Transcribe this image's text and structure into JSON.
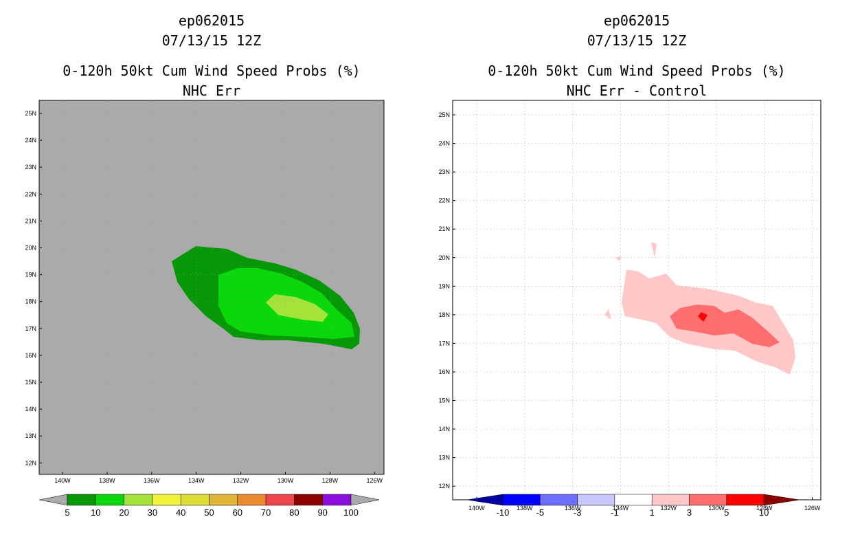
{
  "colors": {
    "background": "#aaaaaa",
    "shade_5": "#079807",
    "shade_10": "#0bd80b",
    "shade_20": "#a4e33a",
    "diff_pos_1": "#ffc8c8",
    "diff_pos_3": "#ff6e6e",
    "diff_pos_5": "#ff0000",
    "grid": "#999999"
  },
  "left_panel": {
    "title_line1": "ep062015",
    "title_line2": "07/13/15 12Z",
    "title_line3": "0-120h 50kt Cum Wind Speed Probs (%)",
    "title_line4": "NHC Err",
    "lat_labels": [
      "25N",
      "24N",
      "23N",
      "22N",
      "21N",
      "20N",
      "19N",
      "18N",
      "17N",
      "16N",
      "15N",
      "14N",
      "13N",
      "12N"
    ],
    "lon_labels": [
      "140W",
      "138W",
      "136W",
      "134W",
      "132W",
      "130W",
      "128W",
      "126W"
    ],
    "colorbar": {
      "labels": [
        "5",
        "10",
        "20",
        "30",
        "40",
        "50",
        "60",
        "70",
        "80",
        "90",
        "100"
      ],
      "colors": [
        "#079807",
        "#0bd80b",
        "#a4e33a",
        "#f2f23a",
        "#dddd37",
        "#e1b537",
        "#ea8a2e",
        "#f0464e",
        "#8c0000",
        "#8c0edc"
      ]
    }
  },
  "right_panel": {
    "title_line1": "ep062015",
    "title_line2": "07/13/15 12Z",
    "title_line3": "0-120h 50kt Cum Wind Speed Probs (%)",
    "title_line4": "NHC Err - Control",
    "lat_labels": [
      "25N",
      "24N",
      "23N",
      "22N",
      "21N",
      "20N",
      "19N",
      "18N",
      "17N",
      "16N",
      "15N",
      "14N",
      "13N",
      "12N"
    ],
    "lon_labels": [
      "140W",
      "138W",
      "136W",
      "134W",
      "132W",
      "130W",
      "128W",
      "126W"
    ],
    "colorbar": {
      "labels": [
        "-10",
        "-5",
        "-3",
        "-1",
        "1",
        "3",
        "5",
        "10"
      ],
      "colors": [
        "#0000a0",
        "#0000ff",
        "#6e6eff",
        "#c8c8ff",
        "#ffffff",
        "#ffc8c8",
        "#ff6e6e",
        "#ff0000",
        "#8c0000"
      ]
    }
  }
}
